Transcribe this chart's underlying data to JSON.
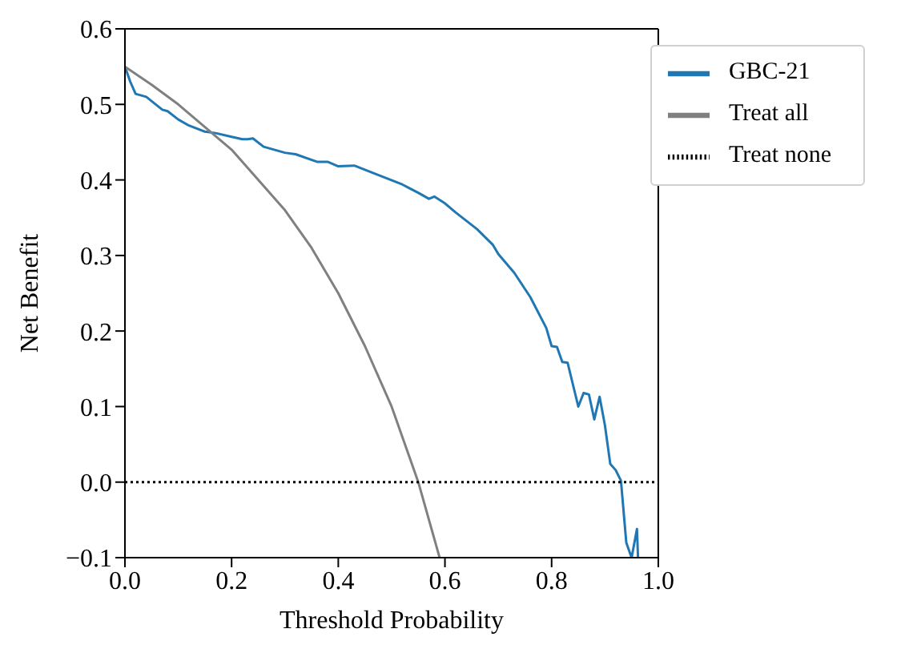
{
  "chart_data": {
    "type": "line",
    "xlabel": "Threshold Probability",
    "ylabel": "Net Benefit",
    "xlim": [
      0,
      1
    ],
    "ylim": [
      -0.1,
      0.6
    ],
    "xticks": [
      {
        "value": 0,
        "label": "0.0"
      },
      0.2,
      0.4,
      0.6,
      0.8,
      {
        "value": 1,
        "label": "1.0"
      }
    ],
    "yticks": [
      {
        "value": -0.1,
        "label": "−0.1"
      },
      {
        "value": 0,
        "label": "0.0"
      },
      0.1,
      0.2,
      0.3,
      0.4,
      0.5,
      0.6
    ],
    "grid": false,
    "legend": "top right",
    "series": [
      {
        "name": "GBC-21",
        "color": "#1f77b4",
        "line_style": "solid",
        "x": [
          0,
          0.01,
          0.02,
          0.04,
          0.07,
          0.08,
          0.1,
          0.12,
          0.15,
          0.17,
          0.2,
          0.22,
          0.23,
          0.24,
          0.26,
          0.3,
          0.32,
          0.36,
          0.38,
          0.4,
          0.43,
          0.47,
          0.52,
          0.55,
          0.57,
          0.58,
          0.6,
          0.62,
          0.66,
          0.69,
          0.7,
          0.73,
          0.76,
          0.79,
          0.8,
          0.81,
          0.82,
          0.83,
          0.85,
          0.86,
          0.87,
          0.88,
          0.89,
          0.9,
          0.91,
          0.92,
          0.93,
          0.94,
          0.95,
          0.96,
          0.962
        ],
        "values": [
          0.55,
          0.53,
          0.514,
          0.51,
          0.493,
          0.491,
          0.48,
          0.472,
          0.464,
          0.462,
          0.457,
          0.454,
          0.454,
          0.455,
          0.444,
          0.436,
          0.434,
          0.424,
          0.424,
          0.418,
          0.419,
          0.408,
          0.394,
          0.383,
          0.375,
          0.378,
          0.369,
          0.357,
          0.335,
          0.314,
          0.302,
          0.277,
          0.245,
          0.204,
          0.18,
          0.179,
          0.159,
          0.158,
          0.1,
          0.118,
          0.116,
          0.083,
          0.113,
          0.075,
          0.024,
          0.016,
          0.002,
          -0.08,
          -0.1,
          -0.062,
          -0.1
        ]
      },
      {
        "name": "Treat all",
        "color": "#808080",
        "line_style": "solid",
        "x": [
          0,
          0.05,
          0.1,
          0.15,
          0.2,
          0.25,
          0.3,
          0.35,
          0.4,
          0.45,
          0.5,
          0.55,
          0.59
        ],
        "values": [
          0.55,
          0.526,
          0.5,
          0.47,
          0.44,
          0.4,
          0.36,
          0.31,
          0.25,
          0.18,
          0.1,
          0,
          -0.1
        ]
      },
      {
        "name": "Treat none",
        "color": "#000000",
        "line_style": "dotted",
        "x": [
          0,
          1
        ],
        "values": [
          0,
          0
        ]
      }
    ]
  }
}
